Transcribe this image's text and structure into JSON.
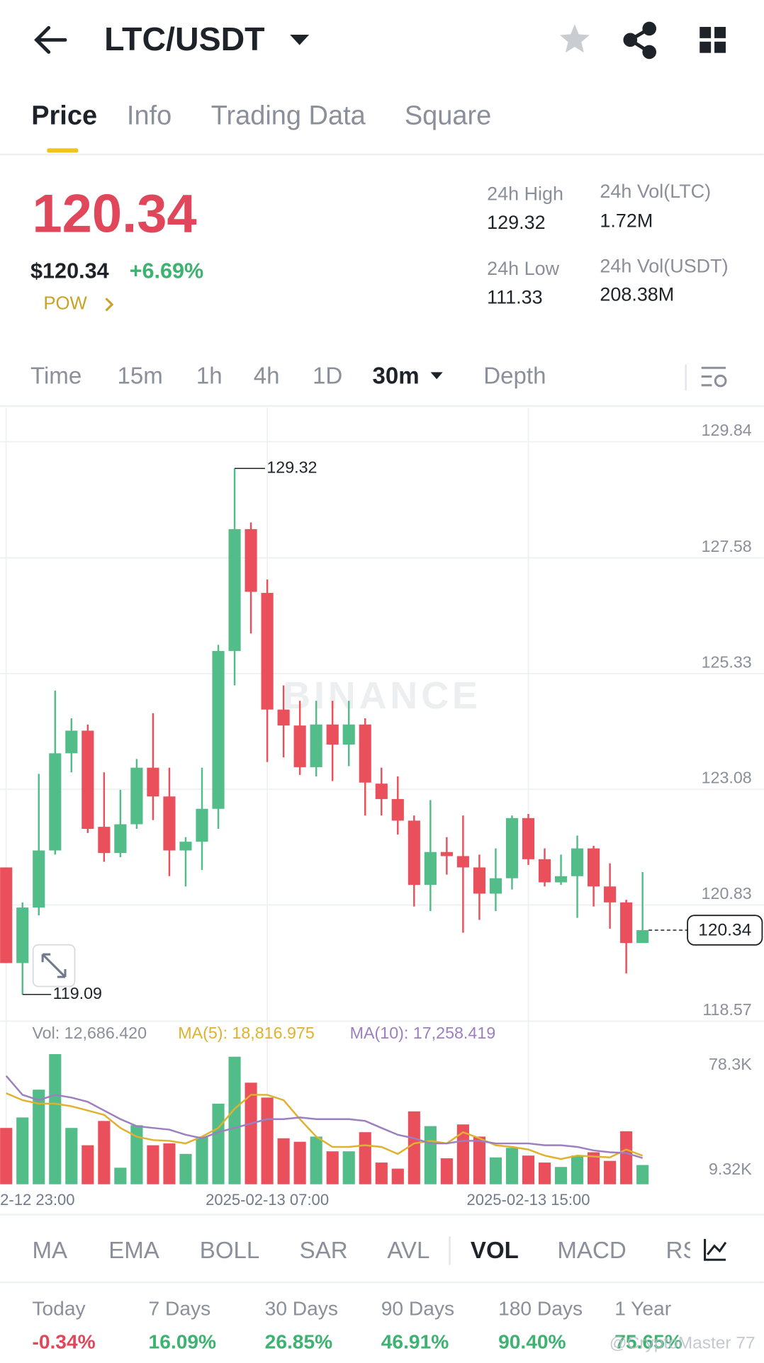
{
  "ui": {
    "header": {
      "pair": "LTC/USDT"
    },
    "tabs": [
      "Price",
      "Info",
      "Trading Data",
      "Square"
    ],
    "price": {
      "last": "120.34",
      "usd": "$120.34",
      "change": "+6.69%",
      "tag": "POW"
    },
    "stats": [
      {
        "label": "24h High",
        "value": "129.32"
      },
      {
        "label": "24h Low",
        "value": "111.33"
      },
      {
        "label": "24h Vol(LTC)",
        "value": "1.72M"
      },
      {
        "label": "24h Vol(USDT)",
        "value": "208.38M"
      }
    ],
    "intervals": [
      "Time",
      "15m",
      "1h",
      "4h",
      "1D",
      "30m",
      "Depth"
    ],
    "watermark": "BINANCE",
    "indicators": [
      "MA",
      "EMA",
      "BOLL",
      "SAR",
      "AVL",
      "VOL",
      "MACD",
      "RS"
    ],
    "performance": [
      {
        "label": "Today",
        "value": "-0.34%"
      },
      {
        "label": "7 Days",
        "value": "16.09%"
      },
      {
        "label": "30 Days",
        "value": "26.85%"
      },
      {
        "label": "90 Days",
        "value": "46.91%"
      },
      {
        "label": "180 Days",
        "value": "90.40%"
      },
      {
        "label": "1 Year",
        "value": "75.65%"
      }
    ],
    "credit": "@CryptoMaster 77"
  },
  "chart_data": [
    {
      "type": "candlestick",
      "categories": [
        "2-12 23:00",
        null,
        null,
        null,
        null,
        null,
        null,
        null,
        null,
        null,
        null,
        null,
        null,
        null,
        null,
        null,
        "2025-02-13 07:00",
        null,
        null,
        null,
        null,
        null,
        null,
        null,
        null,
        null,
        null,
        null,
        null,
        null,
        null,
        null,
        "2025-02-13 15:00",
        null,
        null,
        null,
        null,
        null,
        null,
        null
      ],
      "open": [
        121.56,
        119.7,
        120.78,
        121.89,
        123.78,
        124.22,
        122.35,
        121.84,
        122.4,
        123.5,
        122.94,
        121.89,
        122.06,
        122.7,
        125.77,
        128.14,
        126.9,
        124.63,
        124.32,
        123.51,
        124.34,
        123.95,
        124.34,
        123.19,
        122.89,
        122.47,
        121.22,
        121.86,
        121.78,
        121.56,
        121.05,
        121.35,
        122.52,
        121.72,
        121.27,
        121.39,
        121.93,
        121.19,
        120.88,
        120.09
      ],
      "high": [
        121.56,
        120.88,
        123.38,
        125.0,
        124.46,
        124.34,
        123.41,
        123.07,
        123.67,
        124.56,
        123.5,
        122.15,
        123.5,
        125.89,
        129.32,
        128.27,
        127.16,
        125.1,
        124.8,
        124.8,
        124.8,
        124.8,
        124.46,
        123.5,
        123.33,
        122.57,
        122.87,
        122.15,
        122.57,
        121.81,
        121.93,
        122.57,
        122.6,
        121.93,
        121.81,
        122.18,
        121.98,
        121.64,
        120.93,
        121.47
      ],
      "low": [
        119.7,
        119.09,
        120.63,
        121.81,
        123.41,
        122.23,
        121.67,
        121.76,
        122.31,
        122.48,
        121.39,
        121.19,
        121.51,
        122.31,
        125.1,
        126.11,
        123.61,
        123.7,
        123.36,
        123.33,
        123.24,
        123.53,
        122.57,
        122.57,
        122.2,
        120.8,
        120.71,
        121.42,
        120.29,
        120.54,
        120.71,
        121.13,
        121.61,
        121.19,
        121.22,
        120.58,
        120.8,
        120.37,
        119.5,
        120.09
      ],
      "close": [
        119.7,
        120.78,
        121.89,
        123.78,
        124.22,
        122.31,
        121.84,
        122.4,
        123.5,
        122.94,
        121.89,
        122.06,
        122.7,
        125.77,
        128.14,
        126.92,
        124.63,
        124.32,
        123.51,
        124.34,
        123.95,
        124.34,
        123.21,
        122.89,
        122.47,
        121.22,
        121.86,
        121.78,
        121.56,
        121.05,
        121.35,
        122.52,
        121.72,
        121.27,
        121.39,
        121.93,
        121.19,
        120.88,
        120.09,
        120.34
      ],
      "ylim": [
        118.57,
        130.5
      ],
      "yticks": [
        129.84,
        127.58,
        125.33,
        123.08,
        120.83,
        118.57
      ],
      "grid": true,
      "up_color": "#52bd88",
      "down_color": "#e9505c"
    },
    {
      "type": "volume",
      "values": [
        37100,
        44000,
        62300,
        85700,
        37100,
        25700,
        41700,
        10900,
        38900,
        25700,
        26900,
        20000,
        31400,
        53100,
        84000,
        66900,
        57100,
        30300,
        28000,
        31400,
        21700,
        21700,
        34300,
        14300,
        10300,
        48000,
        38300,
        17100,
        39400,
        31400,
        17700,
        24000,
        18900,
        14300,
        11400,
        18900,
        21100,
        15400,
        34900,
        12686
      ],
      "volume_label": "Vol: 12,686.420",
      "series": [
        {
          "label": "MA(5): 18,816.975",
          "color": "#e0b12f",
          "values": [
            60000,
            55400,
            53100,
            53100,
            51400,
            48600,
            45700,
            37100,
            31400,
            29100,
            28600,
            26900,
            31400,
            37100,
            49700,
            58900,
            58900,
            55400,
            42900,
            31400,
            24600,
            24600,
            25700,
            24600,
            20000,
            26900,
            28600,
            26900,
            34300,
            30300,
            25700,
            24600,
            22900,
            18900,
            16600,
            18900,
            18300,
            17700,
            22900,
            18817
          ]
        },
        {
          "label": "MA(10): 17,258.419",
          "color": "#9b7fc0",
          "values": [
            71400,
            58900,
            55400,
            58900,
            57100,
            54300,
            48600,
            42900,
            38300,
            37100,
            36000,
            32600,
            30300,
            34300,
            37100,
            40000,
            42900,
            42900,
            44000,
            42900,
            42900,
            42900,
            41700,
            37100,
            32600,
            30300,
            26900,
            26900,
            28600,
            28600,
            26900,
            26900,
            26900,
            25700,
            25700,
            24600,
            22300,
            21100,
            20600,
            17258
          ]
        }
      ],
      "ylim": [
        0,
        105700
      ],
      "yticks": [
        {
          "value": 9320,
          "label": "9.32K"
        },
        {
          "value": 78300,
          "label": "78.3K"
        }
      ],
      "grid": false
    }
  ]
}
